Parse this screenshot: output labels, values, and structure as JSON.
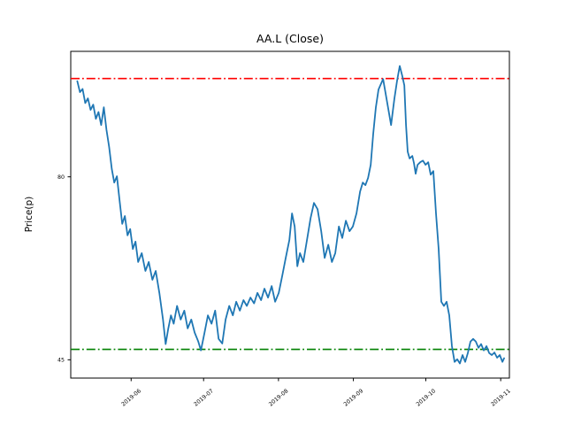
{
  "chart_data": {
    "type": "line",
    "title": "AA.L (Close)",
    "xlabel": "",
    "ylabel": "Price(p)",
    "grid": false,
    "legend": null,
    "axis_color": "#000000",
    "background_color": "#ffffff",
    "x_tick_labels": [
      "2019-06",
      "2019-07",
      "2019-08",
      "2019-09",
      "2019-10",
      "2019-11"
    ],
    "x_tick_days_from_2019_06_01": [
      0,
      30,
      61,
      92,
      122,
      153
    ],
    "y_tick_labels": [
      "45",
      "80"
    ],
    "y_ticks": [
      45,
      80
    ],
    "xlim_days_from_2019_06_01": [
      -25,
      156.6
    ],
    "ylim": [
      41.5,
      104
    ],
    "reference_lines": [
      {
        "name": "upper-reference-line",
        "value": 98.8,
        "color": "#ff0000",
        "style": "dashdot"
      },
      {
        "name": "lower-reference-line",
        "value": 47.0,
        "color": "#008000",
        "style": "dashdot"
      }
    ],
    "series": [
      {
        "name": "Close",
        "color": "#1f77b4",
        "x_days_from_2019_06_01": [
          -22.3,
          -21.2,
          -20.1,
          -19,
          -17.9,
          -16.8,
          -15.7,
          -14.6,
          -13.5,
          -12.4,
          -11.3,
          -10.2,
          -9.1,
          -8,
          -7,
          -5.9,
          -4.8,
          -3.7,
          -2.6,
          -1.5,
          -0.4,
          0.7,
          1.8,
          2.9,
          4.4,
          5.9,
          7.3,
          8.8,
          10.2,
          11.7,
          13.2,
          14.3,
          15.4,
          16.5,
          17.6,
          19,
          20.5,
          22,
          23.4,
          24.9,
          26.3,
          27.8,
          28.9,
          30.4,
          31.8,
          33.3,
          34.8,
          36.2,
          37.7,
          39.1,
          40.6,
          42.1,
          43.5,
          45,
          46.5,
          47.9,
          49.4,
          50.9,
          52.3,
          53.8,
          55.2,
          56.7,
          58.2,
          59.6,
          61.1,
          62.6,
          64,
          65.5,
          66.6,
          67.7,
          68.8,
          69.9,
          71.3,
          72.8,
          74.3,
          75.7,
          77.2,
          78.7,
          80.1,
          81.6,
          83.1,
          84.5,
          86,
          87.4,
          88.9,
          90.4,
          91.8,
          93.3,
          94.8,
          95.9,
          97,
          98.1,
          99.2,
          100.2,
          101.3,
          102.4,
          104.3,
          105.7,
          107.6,
          109,
          110.1,
          111.2,
          112.3,
          113.1,
          113.8,
          114.5,
          115.3,
          116.4,
          117.1,
          117.8,
          118.6,
          119.7,
          120.8,
          121.9,
          123,
          124,
          125.1,
          126.2,
          127.3,
          128.4,
          129.5,
          130.6,
          131.7,
          132.8,
          133.9,
          135,
          136.1,
          137.2,
          138.3,
          139.4,
          140.5,
          141.6,
          142.7,
          143.8,
          144.9,
          146,
          147.1,
          148.2,
          149.3,
          150.4,
          151.5,
          152.6,
          153.7,
          154.4
        ],
        "values": [
          98.3,
          96.2,
          96.8,
          94.1,
          95,
          92.8,
          93.8,
          91.1,
          92.4,
          89.9,
          93.3,
          89,
          85.7,
          81.5,
          78.9,
          80.1,
          75.5,
          71,
          72.5,
          68.8,
          70,
          66.2,
          67.6,
          63.7,
          65.4,
          62,
          63.7,
          60.3,
          62,
          57.8,
          52.7,
          48,
          51,
          53.5,
          51.9,
          55.3,
          52.7,
          54.4,
          51,
          52.7,
          50.2,
          48.5,
          46.8,
          50.2,
          53.5,
          51.9,
          54.4,
          49,
          48.1,
          52.7,
          55.3,
          53.5,
          56.1,
          54.4,
          56.4,
          55.3,
          56.9,
          55.8,
          57.8,
          56.4,
          58.6,
          56.9,
          59.1,
          56.1,
          57.8,
          61.2,
          64.5,
          67.9,
          73,
          70.5,
          62.9,
          65.4,
          63.7,
          67.9,
          72.1,
          75,
          73.8,
          69.6,
          64.5,
          67,
          63.7,
          65.4,
          70.5,
          68.3,
          71.6,
          69.6,
          70.5,
          73,
          77.2,
          78.9,
          78.4,
          79.8,
          82.3,
          88.2,
          93.3,
          96.7,
          98.7,
          95,
          89.9,
          95,
          98.4,
          101.2,
          99.2,
          97.5,
          89.9,
          84.8,
          83.5,
          84,
          82.6,
          80.6,
          82.3,
          82.8,
          83.1,
          82.3,
          82.8,
          80.4,
          81.1,
          73,
          66.2,
          56.1,
          55.3,
          56.1,
          53.5,
          47.6,
          44.6,
          45.1,
          44.3,
          45.9,
          44.6,
          46.3,
          48.5,
          49,
          48.5,
          47.3,
          48,
          46.8,
          47.6,
          46.3,
          45.9,
          46.4,
          45.4,
          45.9,
          44.6,
          45.3
        ]
      }
    ]
  }
}
